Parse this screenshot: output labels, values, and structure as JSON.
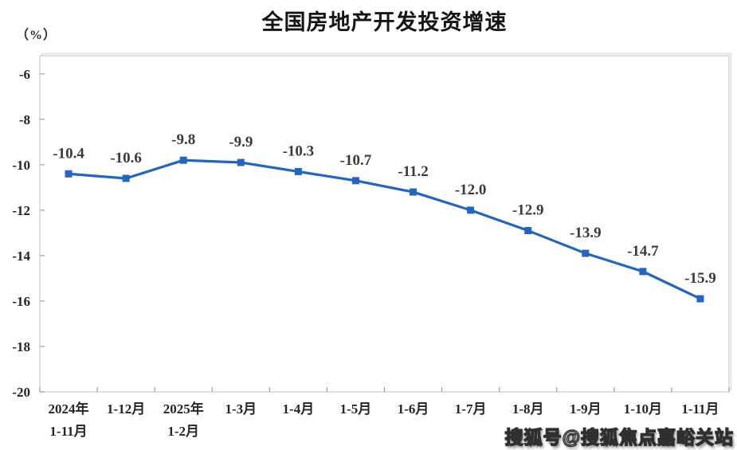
{
  "page": {
    "background": "#ffffff"
  },
  "watermark": {
    "text": "搜狐号@搜狐焦点嘉峪关站"
  },
  "chart_data": {
    "type": "line",
    "title": "全国房地产开发投资增速",
    "unit_label": "（%）",
    "categories": [
      [
        "2024年",
        "1-11月"
      ],
      [
        "1-12月"
      ],
      [
        "2025年",
        "1-2月"
      ],
      [
        "1-3月"
      ],
      [
        "1-4月"
      ],
      [
        "1-5月"
      ],
      [
        "1-6月"
      ],
      [
        "1-7月"
      ],
      [
        "1-8月"
      ],
      [
        "1-9月"
      ],
      [
        "1-10月"
      ],
      [
        "1-11月"
      ]
    ],
    "values": [
      -10.4,
      -10.6,
      -9.8,
      -9.9,
      -10.3,
      -10.7,
      -11.2,
      -12.0,
      -12.9,
      -13.9,
      -14.7,
      -15.9
    ],
    "value_labels": [
      "-10.4",
      "-10.6",
      "-9.8",
      "-9.9",
      "-10.3",
      "-10.7",
      "-11.2",
      "-12.0",
      "-12.9",
      "-13.9",
      "-14.7",
      "-15.9"
    ],
    "yticks": [
      -6,
      -8,
      -10,
      -12,
      -14,
      -16,
      -18,
      -20
    ],
    "ylim": [
      -20,
      -5.2
    ],
    "grid": false,
    "legend": "none",
    "line_color": "#2465bd",
    "marker": "square",
    "value_label_color": "#3b3b3b",
    "axis_text_color": "#262626",
    "border_color": "#cccccc",
    "shadow_color": "#e2e2e2",
    "tick_color": "#a0a0a0"
  }
}
